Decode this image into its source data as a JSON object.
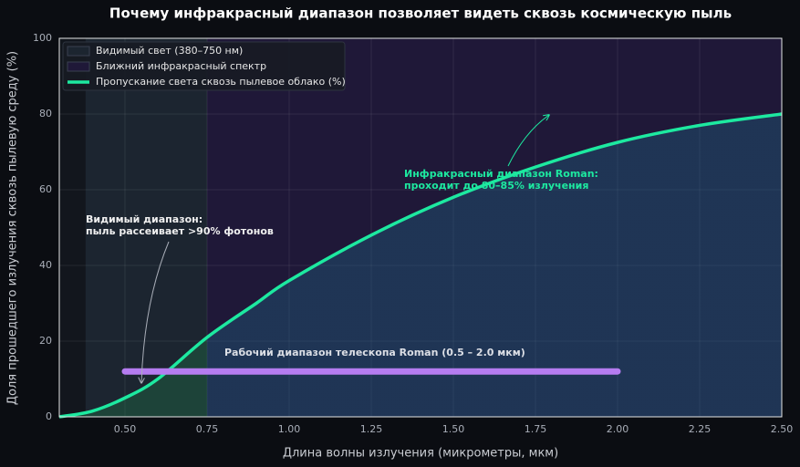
{
  "chart_data": {
    "type": "line",
    "title": "Почему инфракрасный диапазон позволяет видеть сквозь космическую пыль",
    "x_label": "Длина волны излучения (микрометры, мкм)",
    "y_label": "Доля прошедшего излучения сквозь пылевую среду (%)",
    "x": [
      0.3,
      0.4,
      0.5,
      0.6,
      0.75,
      0.9,
      1.0,
      1.25,
      1.5,
      1.75,
      2.0,
      2.25,
      2.5
    ],
    "series": [
      {
        "name": "Пропускание света сквозь пылевое облако (%)",
        "color": "#1de9a0",
        "values": [
          0,
          1.5,
          5,
          10,
          21,
          30,
          36,
          48,
          58,
          66,
          72.5,
          77,
          80
        ]
      }
    ],
    "regions": [
      {
        "name": "Видимый свет (380–750 нм)",
        "color": "#1c2530",
        "x": [
          0.38,
          0.75
        ]
      },
      {
        "name": "Ближний инфракрасный спектр",
        "color": "#1f1838",
        "x": [
          0.75,
          2.5
        ]
      }
    ],
    "range_bar": {
      "label": "Рабочий диапазон телескопа Roman (0.5 – 2.0 мкм)",
      "color": "#b57cf0",
      "x": [
        0.5,
        2.0
      ],
      "y": 12
    },
    "annotations": [
      {
        "lines": [
          "Видимый диапазон:",
          "пыль рассеивает >90% фотонов"
        ],
        "color": "#f0f0f0"
      },
      {
        "lines": [
          "Инфракрасный диапазон Roman:",
          "проходит до 80–85% излучения"
        ],
        "color": "#1de9a0"
      }
    ],
    "xlim": [
      0.3,
      2.5
    ],
    "ylim": [
      0,
      100
    ],
    "xticks": [
      {
        "value": 0.5,
        "label": "0.50"
      },
      {
        "value": 0.75,
        "label": "0.75"
      },
      {
        "value": 1.0,
        "label": "1.00"
      },
      {
        "value": 1.25,
        "label": "1.25"
      },
      {
        "value": 1.5,
        "label": "1.50"
      },
      {
        "value": 1.75,
        "label": "1.75"
      },
      {
        "value": 2.0,
        "label": "2.00"
      },
      {
        "value": 2.25,
        "label": "2.25"
      },
      {
        "value": 2.5,
        "label": "2.50"
      }
    ],
    "yticks": [
      0,
      20,
      40,
      60,
      80,
      100
    ],
    "grid": true,
    "legend": "upper left"
  }
}
